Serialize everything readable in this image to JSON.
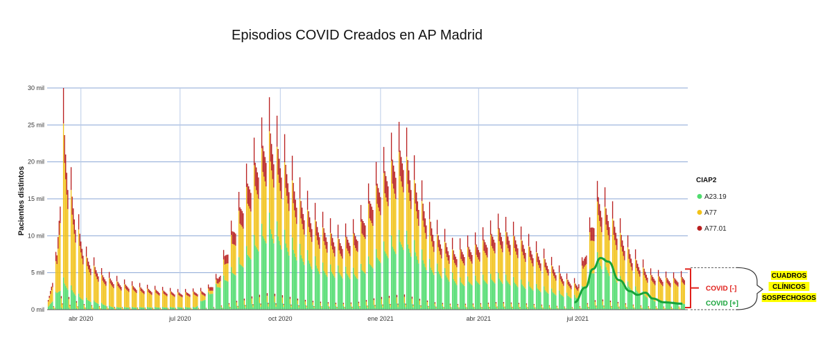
{
  "chart_data": {
    "type": "bar",
    "stacked": true,
    "title": "Episodios COVID Creados en AP Madrid",
    "ylabel": "Pacientes distintos",
    "xlabel": "",
    "ylim": [
      0,
      30000
    ],
    "yticks": [
      0,
      5000,
      10000,
      15000,
      20000,
      25000,
      30000
    ],
    "ytick_labels": [
      "0 mil",
      "5 mil",
      "10 mil",
      "15 mil",
      "20 mil",
      "25 mil",
      "30 mil"
    ],
    "xlim": [
      "2020-03-01",
      "2021-10-10"
    ],
    "xticks": [
      {
        "date": "2020-04-01",
        "label": "abr 2020"
      },
      {
        "date": "2020-07-01",
        "label": "jul 2020"
      },
      {
        "date": "2020-10-01",
        "label": "oct 2020"
      },
      {
        "date": "2021-01-01",
        "label": "ene 2021"
      },
      {
        "date": "2021-04-01",
        "label": "abr 2021"
      },
      {
        "date": "2021-07-01",
        "label": "jul 2021"
      }
    ],
    "grid": true,
    "legend": {
      "title": "CIAP2",
      "position": "right"
    },
    "series": [
      {
        "name": "A23.19",
        "color": "#4fdc6e"
      },
      {
        "name": "A77",
        "color": "#f2c218"
      },
      {
        "name": "A77.01",
        "color": "#b81e1e"
      }
    ],
    "total_trend": [
      {
        "date": "2020-03-01",
        "value": 300
      },
      {
        "date": "2020-03-10",
        "value": 7000
      },
      {
        "date": "2020-03-16",
        "value": 24000
      },
      {
        "date": "2020-03-20",
        "value": 18000
      },
      {
        "date": "2020-03-27",
        "value": 12000
      },
      {
        "date": "2020-04-05",
        "value": 7000
      },
      {
        "date": "2020-04-20",
        "value": 4500
      },
      {
        "date": "2020-05-10",
        "value": 3300
      },
      {
        "date": "2020-06-01",
        "value": 2700
      },
      {
        "date": "2020-07-01",
        "value": 2200
      },
      {
        "date": "2020-07-25",
        "value": 2400
      },
      {
        "date": "2020-08-05",
        "value": 4200
      },
      {
        "date": "2020-08-20",
        "value": 11000
      },
      {
        "date": "2020-09-05",
        "value": 18000
      },
      {
        "date": "2020-09-21",
        "value": 23000
      },
      {
        "date": "2020-10-05",
        "value": 19000
      },
      {
        "date": "2020-10-20",
        "value": 14000
      },
      {
        "date": "2020-11-05",
        "value": 11000
      },
      {
        "date": "2020-11-25",
        "value": 9000
      },
      {
        "date": "2020-12-10",
        "value": 10000
      },
      {
        "date": "2020-12-28",
        "value": 16000
      },
      {
        "date": "2021-01-10",
        "value": 19000
      },
      {
        "date": "2021-01-22",
        "value": 21000
      },
      {
        "date": "2021-02-05",
        "value": 15000
      },
      {
        "date": "2021-02-20",
        "value": 10000
      },
      {
        "date": "2021-03-10",
        "value": 7500
      },
      {
        "date": "2021-04-01",
        "value": 8500
      },
      {
        "date": "2021-04-20",
        "value": 10500
      },
      {
        "date": "2021-05-10",
        "value": 9000
      },
      {
        "date": "2021-06-01",
        "value": 6500
      },
      {
        "date": "2021-06-20",
        "value": 4000
      },
      {
        "date": "2021-07-01",
        "value": 3200
      },
      {
        "date": "2021-07-12",
        "value": 10000
      },
      {
        "date": "2021-07-20",
        "value": 14500
      },
      {
        "date": "2021-08-01",
        "value": 12000
      },
      {
        "date": "2021-08-20",
        "value": 7000
      },
      {
        "date": "2021-09-05",
        "value": 4500
      },
      {
        "date": "2021-09-25",
        "value": 4000
      },
      {
        "date": "2021-10-05",
        "value": 4200
      }
    ],
    "green_trend": [
      {
        "date": "2020-03-01",
        "value": 100
      },
      {
        "date": "2020-03-16",
        "value": 3500
      },
      {
        "date": "2020-04-01",
        "value": 1500
      },
      {
        "date": "2020-05-01",
        "value": 300
      },
      {
        "date": "2020-07-15",
        "value": 300
      },
      {
        "date": "2020-08-20",
        "value": 5000
      },
      {
        "date": "2020-09-21",
        "value": 10500
      },
      {
        "date": "2020-10-10",
        "value": 8000
      },
      {
        "date": "2020-11-10",
        "value": 5000
      },
      {
        "date": "2020-12-10",
        "value": 4500
      },
      {
        "date": "2021-01-05",
        "value": 7500
      },
      {
        "date": "2021-01-22",
        "value": 9000
      },
      {
        "date": "2021-02-15",
        "value": 5500
      },
      {
        "date": "2021-03-15",
        "value": 3500
      },
      {
        "date": "2021-04-20",
        "value": 4000
      },
      {
        "date": "2021-06-01",
        "value": 2500
      },
      {
        "date": "2021-07-01",
        "value": 1500
      },
      {
        "date": "2021-07-20",
        "value": 6500
      },
      {
        "date": "2021-08-10",
        "value": 3500
      },
      {
        "date": "2021-09-10",
        "value": 1200
      },
      {
        "date": "2021-10-05",
        "value": 800
      }
    ],
    "annotation_curve": [
      {
        "date": "2021-06-28",
        "value": 1000
      },
      {
        "date": "2021-07-08",
        "value": 3000
      },
      {
        "date": "2021-07-15",
        "value": 5500
      },
      {
        "date": "2021-07-22",
        "value": 7000
      },
      {
        "date": "2021-07-29",
        "value": 6500
      },
      {
        "date": "2021-08-08",
        "value": 4000
      },
      {
        "date": "2021-08-18",
        "value": 2500
      },
      {
        "date": "2021-08-25",
        "value": 2000
      },
      {
        "date": "2021-09-01",
        "value": 2300
      },
      {
        "date": "2021-09-08",
        "value": 1500
      },
      {
        "date": "2021-09-18",
        "value": 1000
      },
      {
        "date": "2021-10-05",
        "value": 800
      }
    ],
    "annotations": {
      "covid_neg": "COVID [-]",
      "covid_pos": "COVID [+]",
      "highlight_lines": [
        "CUADROS",
        "CLÍNICOS",
        "SOSPECHOSOS"
      ]
    },
    "annotation_colors": {
      "covid_neg": "#e0201b",
      "covid_pos": "#17a33a",
      "highlight": "#ffff00",
      "curve": "#17a33a"
    }
  }
}
